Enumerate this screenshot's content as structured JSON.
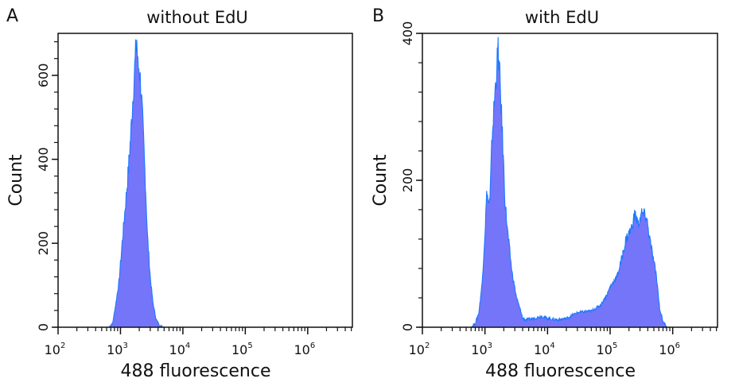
{
  "chart_data": [
    {
      "type": "area",
      "panel_label": "A",
      "title": "without EdU",
      "xlabel": "488 fluorescence",
      "ylabel": "Count",
      "xscale": "log",
      "xlim": [
        100,
        5200000
      ],
      "ylim": [
        0,
        700
      ],
      "x_ticks": [
        {
          "base": "10",
          "exp": "2",
          "value": 100
        },
        {
          "base": "10",
          "exp": "3",
          "value": 1000
        },
        {
          "base": "10",
          "exp": "4",
          "value": 10000
        },
        {
          "base": "10",
          "exp": "5",
          "value": 100000
        },
        {
          "base": "10",
          "exp": "6",
          "value": 1000000
        }
      ],
      "y_ticks": [
        "0",
        "200",
        "400",
        "600"
      ],
      "y_tick_values": [
        0,
        200,
        400,
        600
      ],
      "y_minor_step": 40,
      "grid": false,
      "fill_color": "#7575fa",
      "line_color": "#1e78ff",
      "x": [
        650,
        750,
        850,
        950,
        1050,
        1150,
        1300,
        1450,
        1600,
        1750,
        1820,
        1900,
        2000,
        2150,
        2300,
        2500,
        2700,
        3000,
        3300,
        3700,
        4200,
        5000
      ],
      "y": [
        0,
        10,
        60,
        110,
        190,
        260,
        350,
        450,
        560,
        650,
        690,
        620,
        620,
        560,
        470,
        350,
        220,
        120,
        60,
        20,
        5,
        0
      ]
    },
    {
      "type": "area",
      "panel_label": "B",
      "title": "with EdU",
      "xlabel": "488 fluorescence",
      "ylabel": "Count",
      "xscale": "log",
      "xlim": [
        100,
        5200000
      ],
      "ylim": [
        0,
        400
      ],
      "x_ticks": [
        {
          "base": "10",
          "exp": "2",
          "value": 100
        },
        {
          "base": "10",
          "exp": "3",
          "value": 1000
        },
        {
          "base": "10",
          "exp": "4",
          "value": 10000
        },
        {
          "base": "10",
          "exp": "5",
          "value": 100000
        },
        {
          "base": "10",
          "exp": "6",
          "value": 1000000
        }
      ],
      "y_ticks": [
        "0",
        "200",
        "400"
      ],
      "y_tick_values": [
        0,
        200,
        400
      ],
      "y_minor_step": 40,
      "grid": false,
      "fill_color": "#7575fa",
      "line_color": "#1e78ff",
      "x": [
        600,
        700,
        800,
        900,
        1000,
        1080,
        1120,
        1200,
        1300,
        1450,
        1620,
        1750,
        1900,
        2100,
        2300,
        2700,
        3200,
        3800,
        4000,
        4500,
        6000,
        8000,
        10000,
        15000,
        20000,
        30000,
        50000,
        70000,
        90000,
        100000,
        130000,
        150000,
        180000,
        220000,
        250000,
        280000,
        320000,
        380000,
        450000,
        550000,
        620000,
        700000,
        800000
      ],
      "y": [
        0,
        5,
        20,
        60,
        130,
        190,
        170,
        170,
        260,
        320,
        378,
        330,
        260,
        170,
        130,
        75,
        40,
        20,
        12,
        10,
        12,
        15,
        12,
        10,
        12,
        20,
        22,
        30,
        45,
        55,
        70,
        90,
        120,
        135,
        155,
        140,
        155,
        150,
        110,
        70,
        25,
        8,
        0
      ]
    }
  ]
}
